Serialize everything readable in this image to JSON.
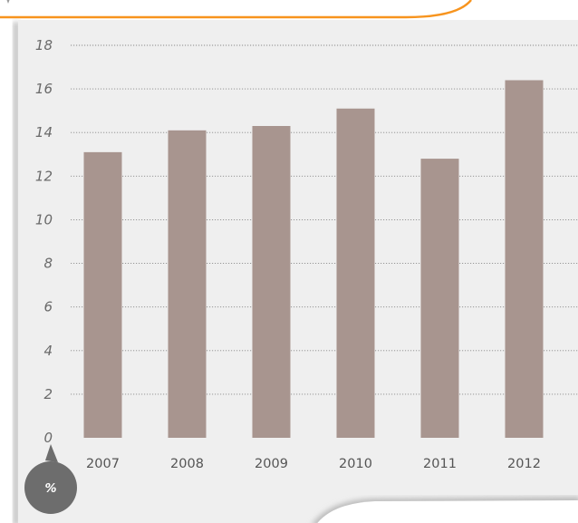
{
  "chart_data": {
    "type": "bar",
    "categories": [
      "2007",
      "2008",
      "2009",
      "2010",
      "2011",
      "2012"
    ],
    "values": [
      13.1,
      14.1,
      14.3,
      15.1,
      12.8,
      16.4
    ],
    "ylim": [
      0,
      18
    ],
    "yticks": [
      0,
      2,
      4,
      6,
      8,
      10,
      12,
      14,
      16,
      18
    ],
    "unit_label": "%",
    "grid": true,
    "bar_color": "#a8958f",
    "accent_color": "#f7941e",
    "plot_background": "#efefef",
    "badge_color": "#6d6d6d"
  }
}
